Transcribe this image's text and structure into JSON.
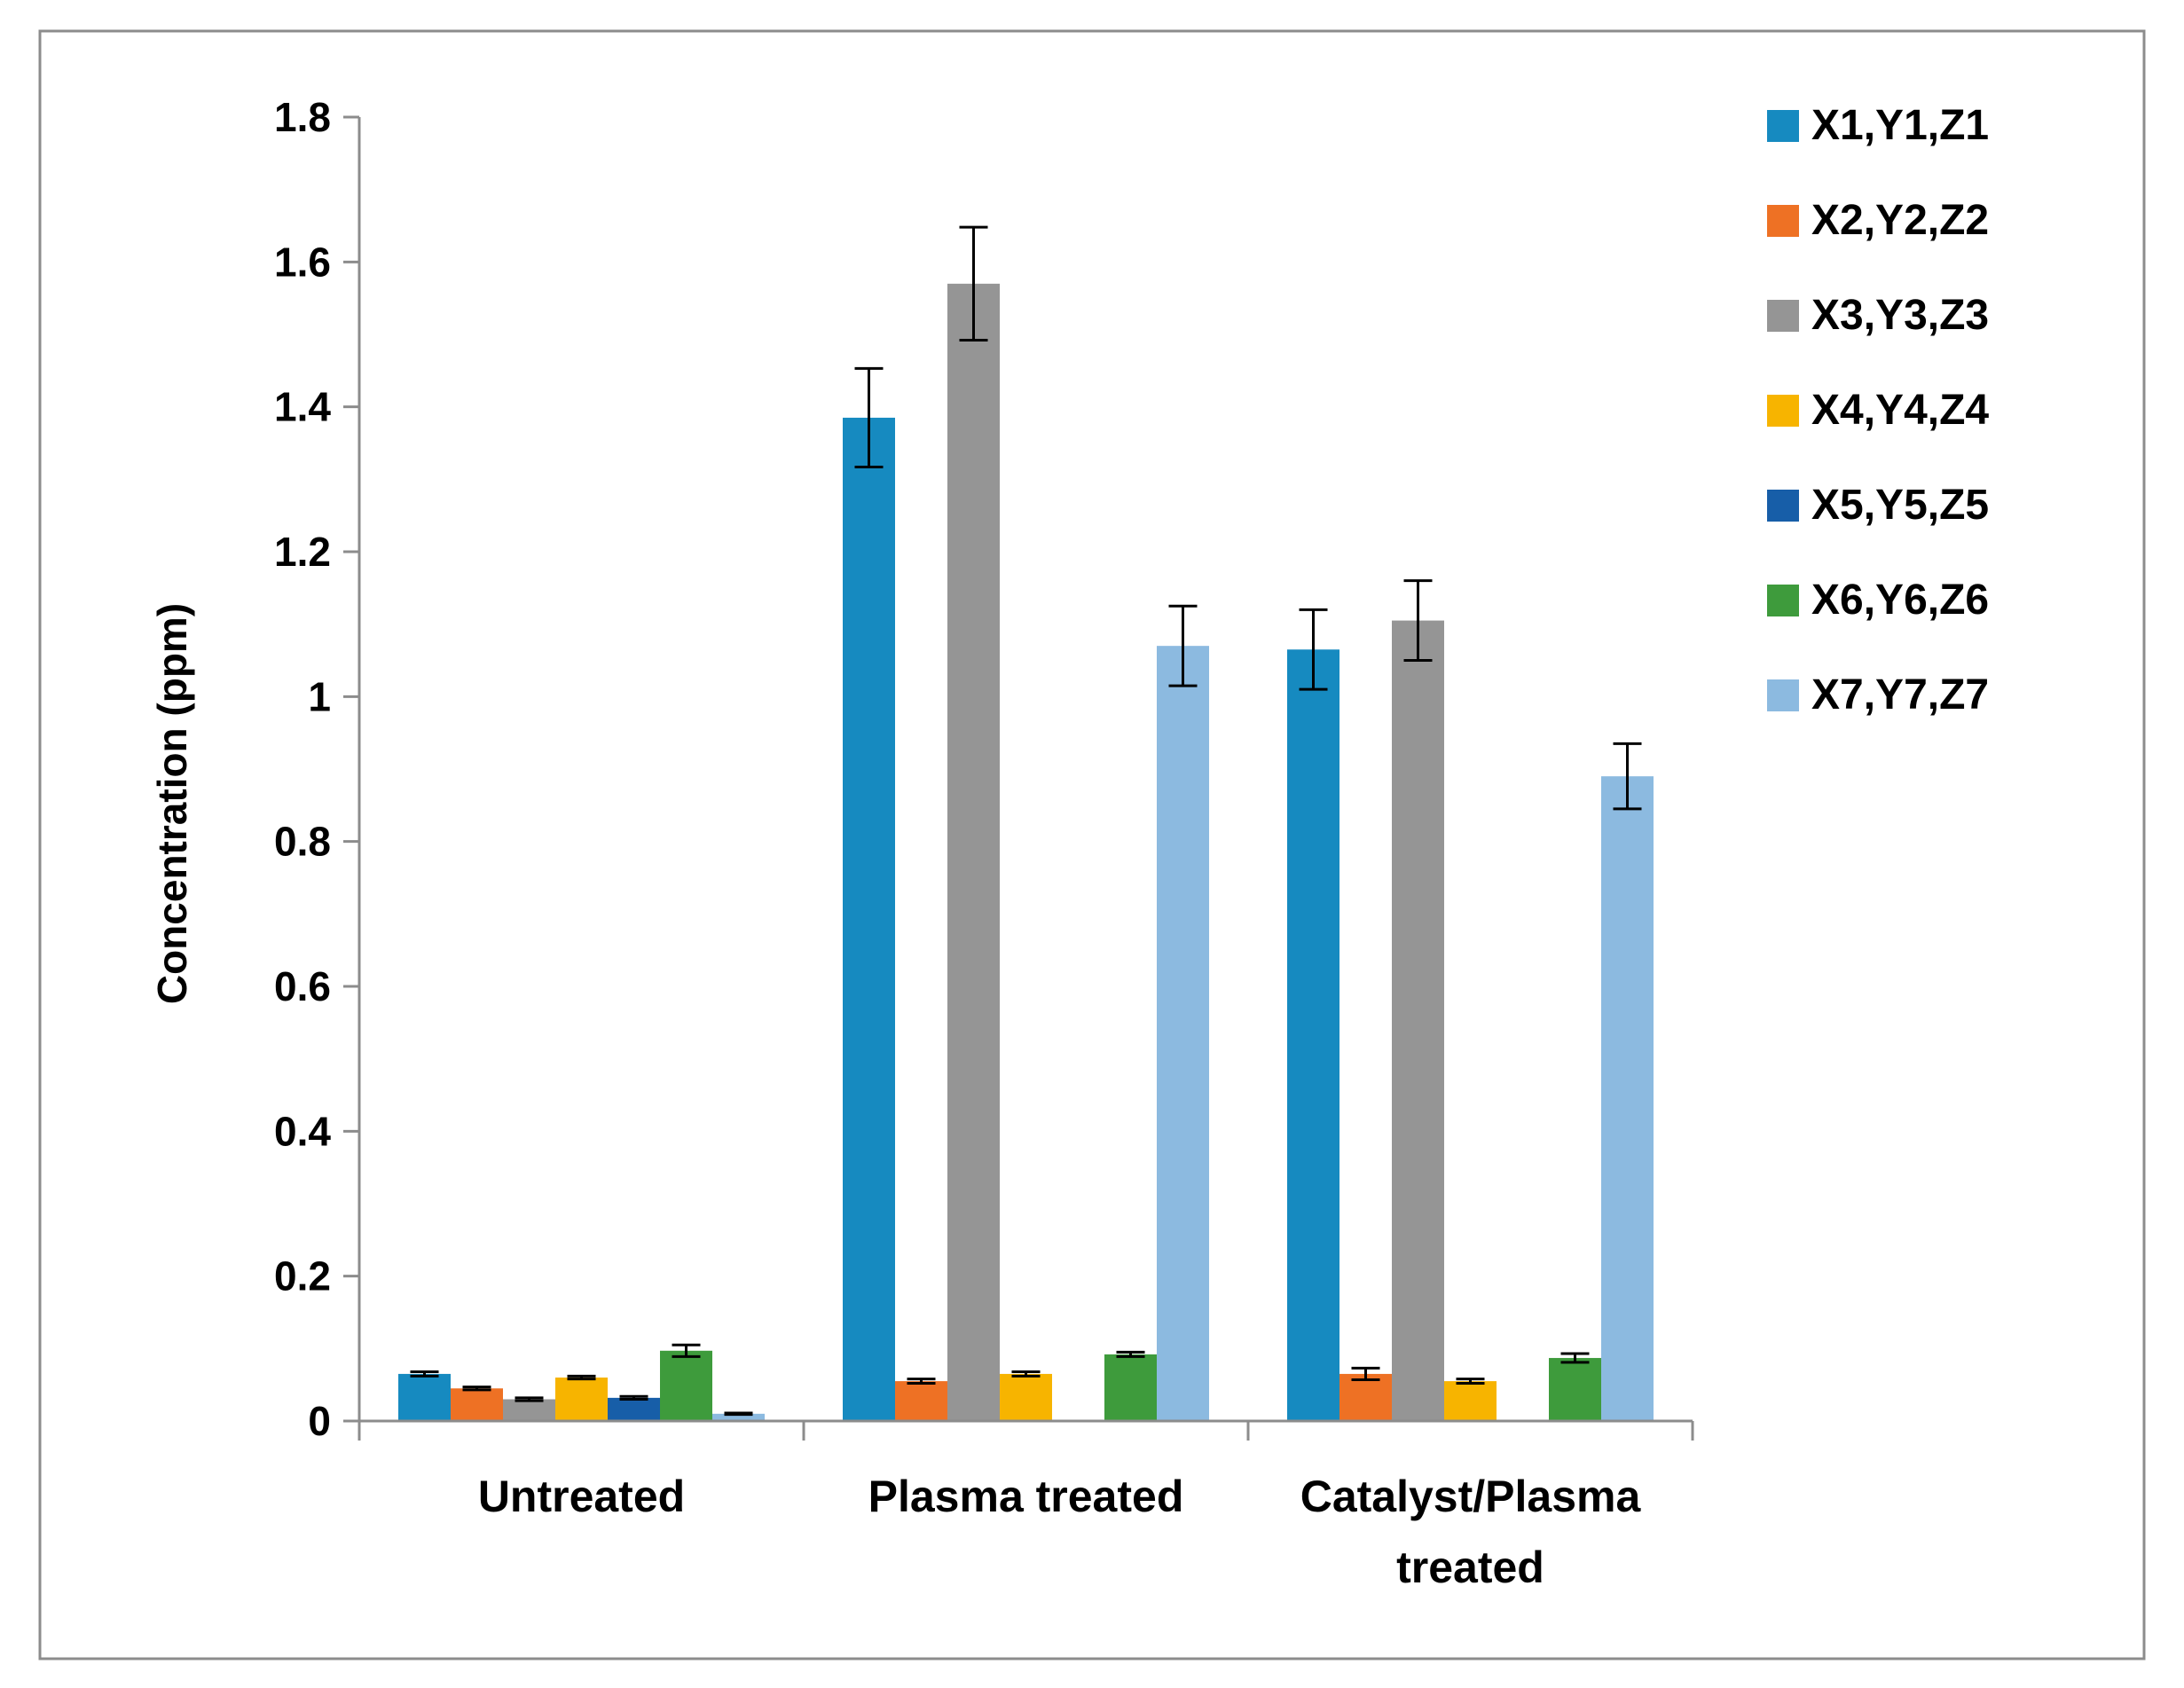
{
  "colors": {
    "frame": "#8c8c8c",
    "axis": "#8c8c8c",
    "text": "#000000",
    "error_bar": "#000000"
  },
  "chart_data": {
    "type": "bar",
    "title": "",
    "xlabel": "",
    "ylabel": "Concentration (ppm)",
    "ylim": [
      0,
      1.8
    ],
    "yticks": [
      0,
      0.2,
      0.4,
      0.6,
      0.8,
      1,
      1.2,
      1.4,
      1.6,
      1.8
    ],
    "ytick_labels": [
      "0",
      "0.2",
      "0.4",
      "0.6",
      "0.8",
      "1",
      "1.2",
      "1.4",
      "1.6",
      "1.8"
    ],
    "grid": false,
    "legend_position": "right",
    "categories": [
      [
        "Untreated"
      ],
      [
        "Plasma treated"
      ],
      [
        "Catalyst/Plasma",
        "treated"
      ]
    ],
    "series": [
      {
        "name": "X1,Y1,Z1",
        "color": "#168ac0",
        "values": [
          0.065,
          1.385,
          1.065
        ],
        "errors": [
          0.003,
          0.068,
          0.055
        ]
      },
      {
        "name": "X2,Y2,Z2",
        "color": "#ee7124",
        "values": [
          0.045,
          0.055,
          0.065
        ],
        "errors": [
          0.002,
          0.003,
          0.008
        ]
      },
      {
        "name": "X3,Y3,Z3",
        "color": "#959595",
        "values": [
          0.03,
          1.57,
          1.105
        ],
        "errors": [
          0.002,
          0.078,
          0.055
        ]
      },
      {
        "name": "X4,Y4,Z4",
        "color": "#f7b400",
        "values": [
          0.06,
          0.065,
          0.055
        ],
        "errors": [
          0.002,
          0.003,
          0.003
        ]
      },
      {
        "name": "X5,Y5,Z5",
        "color": "#175ea8",
        "values": [
          0.032,
          null,
          null
        ],
        "errors": [
          0.002,
          null,
          null
        ]
      },
      {
        "name": "X6,Y6,Z6",
        "color": "#3e9b3c",
        "values": [
          0.097,
          0.092,
          0.087
        ],
        "errors": [
          0.008,
          0.003,
          0.006
        ]
      },
      {
        "name": "X7,Y7,Z7",
        "color": "#8cbae0",
        "values": [
          0.01,
          1.07,
          0.89
        ],
        "errors": [
          0.001,
          0.055,
          0.045
        ]
      }
    ]
  }
}
